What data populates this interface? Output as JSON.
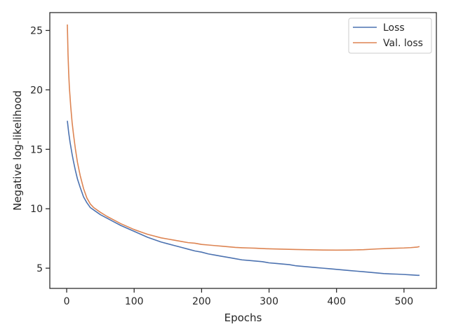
{
  "chart_data": {
    "type": "line",
    "title": "",
    "xlabel": "Epochs",
    "ylabel": "Negative log-likelihood",
    "xlim": [
      -25,
      548
    ],
    "ylim": [
      3.3,
      26.5
    ],
    "xticks": [
      0,
      100,
      200,
      300,
      400,
      500
    ],
    "yticks": [
      5,
      10,
      15,
      20,
      25
    ],
    "grid": false,
    "legend_position": "top-right",
    "series": [
      {
        "name": "Loss",
        "color": "#4c72b0",
        "points": [
          [
            1,
            17.4
          ],
          [
            3,
            16.4
          ],
          [
            5,
            15.6
          ],
          [
            8,
            14.6
          ],
          [
            10,
            14.0
          ],
          [
            13,
            13.2
          ],
          [
            16,
            12.5
          ],
          [
            20,
            11.8
          ],
          [
            25,
            11.0
          ],
          [
            30,
            10.5
          ],
          [
            35,
            10.1
          ],
          [
            40,
            9.9
          ],
          [
            45,
            9.7
          ],
          [
            50,
            9.5
          ],
          [
            60,
            9.2
          ],
          [
            70,
            8.9
          ],
          [
            80,
            8.6
          ],
          [
            90,
            8.35
          ],
          [
            100,
            8.1
          ],
          [
            110,
            7.85
          ],
          [
            120,
            7.6
          ],
          [
            130,
            7.4
          ],
          [
            140,
            7.2
          ],
          [
            150,
            7.05
          ],
          [
            160,
            6.9
          ],
          [
            170,
            6.75
          ],
          [
            180,
            6.6
          ],
          [
            190,
            6.45
          ],
          [
            200,
            6.35
          ],
          [
            210,
            6.2
          ],
          [
            220,
            6.1
          ],
          [
            230,
            6.0
          ],
          [
            240,
            5.9
          ],
          [
            250,
            5.8
          ],
          [
            260,
            5.7
          ],
          [
            270,
            5.65
          ],
          [
            280,
            5.6
          ],
          [
            290,
            5.55
          ],
          [
            300,
            5.45
          ],
          [
            310,
            5.4
          ],
          [
            320,
            5.35
          ],
          [
            330,
            5.3
          ],
          [
            340,
            5.2
          ],
          [
            350,
            5.15
          ],
          [
            360,
            5.1
          ],
          [
            370,
            5.05
          ],
          [
            380,
            5.0
          ],
          [
            390,
            4.95
          ],
          [
            400,
            4.9
          ],
          [
            410,
            4.85
          ],
          [
            420,
            4.8
          ],
          [
            430,
            4.75
          ],
          [
            440,
            4.7
          ],
          [
            450,
            4.65
          ],
          [
            460,
            4.6
          ],
          [
            470,
            4.55
          ],
          [
            480,
            4.52
          ],
          [
            490,
            4.5
          ],
          [
            500,
            4.47
          ],
          [
            510,
            4.44
          ],
          [
            520,
            4.4
          ],
          [
            523,
            4.4
          ]
        ]
      },
      {
        "name": "Val. loss",
        "color": "#dd8452",
        "points": [
          [
            1,
            25.5
          ],
          [
            2,
            23.0
          ],
          [
            3,
            21.4
          ],
          [
            4,
            20.2
          ],
          [
            6,
            18.6
          ],
          [
            8,
            17.3
          ],
          [
            10,
            16.3
          ],
          [
            13,
            15.0
          ],
          [
            16,
            13.9
          ],
          [
            20,
            12.8
          ],
          [
            25,
            11.7
          ],
          [
            30,
            10.9
          ],
          [
            35,
            10.4
          ],
          [
            40,
            10.1
          ],
          [
            45,
            9.9
          ],
          [
            50,
            9.7
          ],
          [
            60,
            9.35
          ],
          [
            70,
            9.05
          ],
          [
            80,
            8.75
          ],
          [
            90,
            8.5
          ],
          [
            100,
            8.25
          ],
          [
            110,
            8.05
          ],
          [
            120,
            7.85
          ],
          [
            130,
            7.7
          ],
          [
            140,
            7.55
          ],
          [
            150,
            7.45
          ],
          [
            160,
            7.35
          ],
          [
            170,
            7.25
          ],
          [
            180,
            7.15
          ],
          [
            190,
            7.1
          ],
          [
            200,
            7.0
          ],
          [
            210,
            6.95
          ],
          [
            220,
            6.9
          ],
          [
            230,
            6.85
          ],
          [
            240,
            6.8
          ],
          [
            250,
            6.75
          ],
          [
            260,
            6.72
          ],
          [
            270,
            6.7
          ],
          [
            280,
            6.68
          ],
          [
            290,
            6.65
          ],
          [
            300,
            6.63
          ],
          [
            320,
            6.6
          ],
          [
            340,
            6.57
          ],
          [
            360,
            6.55
          ],
          [
            380,
            6.53
          ],
          [
            400,
            6.52
          ],
          [
            420,
            6.53
          ],
          [
            440,
            6.56
          ],
          [
            460,
            6.62
          ],
          [
            480,
            6.67
          ],
          [
            500,
            6.7
          ],
          [
            510,
            6.73
          ],
          [
            520,
            6.78
          ],
          [
            523,
            6.82
          ]
        ]
      }
    ]
  }
}
